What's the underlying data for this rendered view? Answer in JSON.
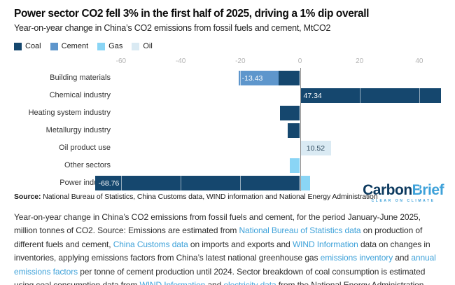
{
  "header": {
    "title": "Power sector CO2 fell 3% in the first half of 2025, driving a 1% dip overall",
    "subtitle": "Year-on-year change in China’s CO2 emissions from fossil fuels and cement, MtCO2"
  },
  "colors": {
    "coal": "#15476e",
    "cement": "#5e96cc",
    "gas": "#8ad5f5",
    "oil": "#daeaf3",
    "zero_line": "#8c8c8c",
    "tick_text": "#b3b3b3",
    "link": "#3da1d9",
    "logo_navy": "#0d3a5f",
    "logo_blue": "#3da1d9"
  },
  "legend": {
    "items": [
      {
        "label": "Coal",
        "color": "#15476e"
      },
      {
        "label": "Cement",
        "color": "#5e96cc"
      },
      {
        "label": "Gas",
        "color": "#8ad5f5"
      },
      {
        "label": "Oil",
        "color": "#daeaf3"
      }
    ]
  },
  "chart_data": {
    "type": "bar",
    "orientation": "horizontal",
    "title": "Power sector CO2 fell 3% in the first half of 2025, driving a 1% dip overall",
    "subtitle": "Year-on-year change in China’s CO2 emissions from fossil fuels and cement, MtCO2",
    "unit": "MtCO2",
    "categories": [
      "Building materials",
      "Chemical industry",
      "Heating system industry",
      "Metallurgy industry",
      "Oil product use",
      "Other sectors",
      "Power industry"
    ],
    "series": [
      {
        "name": "Coal",
        "color": "#15476e",
        "values": [
          -7.2,
          47.34,
          -6.8,
          -4.2,
          0,
          0,
          -68.76
        ]
      },
      {
        "name": "Cement",
        "color": "#5e96cc",
        "values": [
          -13.43,
          0,
          0,
          0,
          0,
          0,
          0
        ]
      },
      {
        "name": "Gas",
        "color": "#8ad5f5",
        "values": [
          0,
          0,
          0,
          0,
          0,
          -3.3,
          3.3
        ]
      },
      {
        "name": "Oil",
        "color": "#daeaf3",
        "values": [
          0,
          0,
          0,
          0,
          10.52,
          0,
          0
        ]
      }
    ],
    "bar_labels": [
      {
        "row": 0,
        "series": "Cement",
        "text": "-13.43",
        "color": "#ffffff",
        "align": "left"
      },
      {
        "row": 1,
        "series": "Coal",
        "text": "47.34",
        "color": "#ffffff",
        "align": "left"
      },
      {
        "row": 4,
        "series": "Oil",
        "text": "10.52",
        "color": "#2e4a5e",
        "align": "center"
      },
      {
        "row": 6,
        "series": "Coal",
        "text": "-68.76",
        "color": "#ffffff",
        "align": "left"
      }
    ],
    "x_ticks": [
      -60,
      -40,
      -20,
      0,
      20,
      40
    ],
    "xlim": [
      -70,
      50
    ],
    "grid": "vertical",
    "legend_position": "top-left"
  },
  "source": {
    "prefix": "Source:",
    "text": " National Bureau of Statistics, China Customs data, WIND information and National Energy Administration"
  },
  "logo": {
    "carbon": "Carbon",
    "brief": "Brief",
    "tagline": "CLEAR ON CLIMATE"
  },
  "footnote": {
    "segments": [
      {
        "text": "Year-on-year change in China’s CO2 emissions from fossil fuels and cement, for the period January-June 2025, million tonnes of CO2. Source: Emissions are estimated from ",
        "link": false
      },
      {
        "text": "National Bureau of Statistics data",
        "link": true
      },
      {
        "text": " on production of different fuels and cement, ",
        "link": false
      },
      {
        "text": "China Customs data",
        "link": true
      },
      {
        "text": " on imports and exports and ",
        "link": false
      },
      {
        "text": "WIND Information",
        "link": true
      },
      {
        "text": " data on changes in inventories, applying emissions factors from China’s latest national greenhouse gas ",
        "link": false
      },
      {
        "text": "emissions inventory",
        "link": true
      },
      {
        "text": " and ",
        "link": false
      },
      {
        "text": "annual emissions factors",
        "link": true
      },
      {
        "text": " per tonne of cement production until 2024. Sector breakdown of coal consumption is estimated using coal consumption data from ",
        "link": false
      },
      {
        "text": "WIND Information",
        "link": true
      },
      {
        "text": " and ",
        "link": false
      },
      {
        "text": "electricity data",
        "link": true
      },
      {
        "text": " from the National Energy Administration.",
        "link": false
      }
    ]
  }
}
